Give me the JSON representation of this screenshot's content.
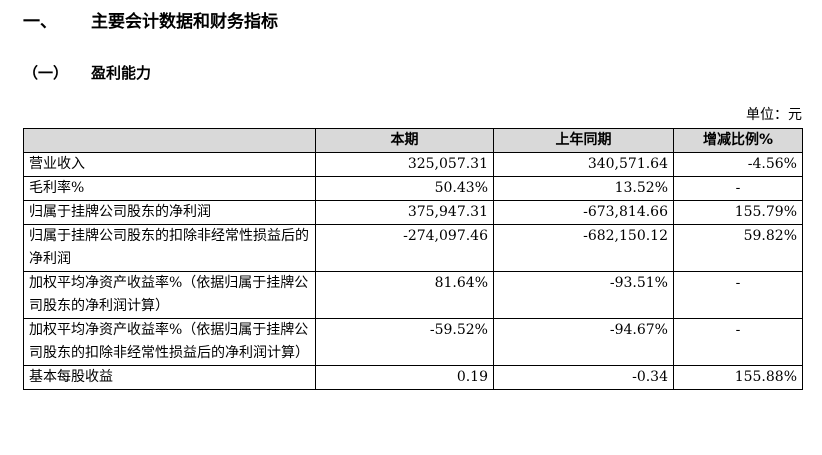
{
  "heading1": {
    "number": "一、",
    "title": "主要会计数据和财务指标"
  },
  "heading2": {
    "number": "（一）",
    "title": "盈利能力"
  },
  "unit_label": "单位：元",
  "table": {
    "columns": [
      "",
      "本期",
      "上年同期",
      "增减比例%"
    ],
    "rows": [
      {
        "label": "营业收入",
        "current": "325,057.31",
        "previous": "340,571.64",
        "change": "-4.56%"
      },
      {
        "label": "毛利率%",
        "current": "50.43%",
        "previous": "13.52%",
        "change": "-"
      },
      {
        "label": "归属于挂牌公司股东的净利润",
        "current": "375,947.31",
        "previous": "-673,814.66",
        "change": "155.79%"
      },
      {
        "label": "归属于挂牌公司股东的扣除非经常性损益后的净利润",
        "current": "-274,097.46",
        "previous": "-682,150.12",
        "change": "59.82%"
      },
      {
        "label": "加权平均净资产收益率%（依据归属于挂牌公司股东的净利润计算）",
        "current": "81.64%",
        "previous": "-93.51%",
        "change": "-"
      },
      {
        "label": "加权平均净资产收益率%（依据归属于挂牌公司股东的扣除非经常性损益后的净利润计算）",
        "current": "-59.52%",
        "previous": "-94.67%",
        "change": "-"
      },
      {
        "label": "基本每股收益",
        "current": "0.19",
        "previous": "-0.34",
        "change": "155.88%"
      }
    ]
  }
}
